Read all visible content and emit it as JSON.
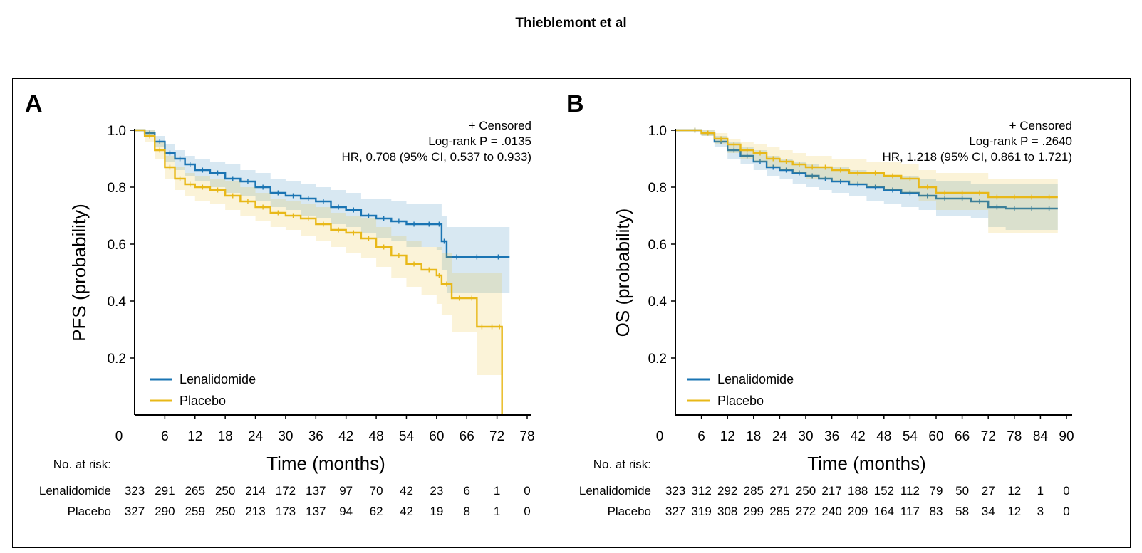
{
  "page_title": "Thieblemont et al",
  "chart_data": [
    {
      "type": "line",
      "panel": "A",
      "title": "",
      "ylabel": "PFS (probability)",
      "xlabel": "Time (months)",
      "xlim": [
        0,
        78
      ],
      "ylim": [
        0,
        1.0
      ],
      "x_ticks": [
        "0",
        "6",
        "12",
        "18",
        "24",
        "30",
        "36",
        "42",
        "48",
        "54",
        "60",
        "66",
        "72",
        "78"
      ],
      "y_ticks": [
        "1.0",
        "0.8",
        "0.6",
        "0.4",
        "0.2"
      ],
      "annotations": [
        "+ Censored",
        "Log-rank P = .0135",
        "HR, 0.708 (95% CI, 0.537 to 0.933)"
      ],
      "legend": [
        "Lenalidomide",
        "Placebo"
      ],
      "series": [
        {
          "name": "Lenalidomide",
          "color": "#1a74b3",
          "x": [
            0,
            2,
            4,
            6,
            8,
            10,
            12,
            15,
            18,
            21,
            24,
            27,
            30,
            33,
            36,
            39,
            42,
            45,
            48,
            51,
            54,
            57,
            60,
            61,
            62,
            66,
            70,
            74.5
          ],
          "y": [
            1.0,
            0.99,
            0.96,
            0.92,
            0.9,
            0.88,
            0.86,
            0.85,
            0.83,
            0.82,
            0.8,
            0.78,
            0.77,
            0.76,
            0.75,
            0.73,
            0.72,
            0.7,
            0.69,
            0.68,
            0.67,
            0.67,
            0.67,
            0.61,
            0.555,
            0.555,
            0.555,
            0.555
          ],
          "ci_lower": [
            1.0,
            0.98,
            0.94,
            0.89,
            0.86,
            0.84,
            0.82,
            0.8,
            0.78,
            0.77,
            0.75,
            0.73,
            0.72,
            0.7,
            0.69,
            0.67,
            0.66,
            0.64,
            0.62,
            0.61,
            0.59,
            0.59,
            0.58,
            0.51,
            0.43,
            0.43,
            0.43,
            0.43
          ],
          "ci_upper": [
            1.0,
            1.0,
            0.98,
            0.95,
            0.93,
            0.91,
            0.9,
            0.89,
            0.88,
            0.86,
            0.85,
            0.83,
            0.82,
            0.81,
            0.8,
            0.79,
            0.78,
            0.76,
            0.76,
            0.75,
            0.74,
            0.74,
            0.74,
            0.7,
            0.66,
            0.66,
            0.66,
            0.66
          ]
        },
        {
          "name": "Placebo",
          "color": "#e8b818",
          "x": [
            0,
            2,
            4,
            6,
            8,
            10,
            12,
            15,
            18,
            21,
            24,
            27,
            30,
            33,
            36,
            39,
            42,
            45,
            48,
            51,
            54,
            57,
            60,
            61,
            63,
            66,
            68,
            70,
            72,
            73
          ],
          "y": [
            1.0,
            0.98,
            0.93,
            0.87,
            0.83,
            0.81,
            0.8,
            0.79,
            0.77,
            0.75,
            0.73,
            0.71,
            0.7,
            0.69,
            0.67,
            0.65,
            0.64,
            0.62,
            0.59,
            0.56,
            0.53,
            0.51,
            0.49,
            0.46,
            0.41,
            0.41,
            0.31,
            0.31,
            0.31,
            0.0
          ],
          "ci_lower": [
            1.0,
            0.96,
            0.9,
            0.83,
            0.79,
            0.77,
            0.75,
            0.74,
            0.72,
            0.7,
            0.68,
            0.66,
            0.65,
            0.63,
            0.61,
            0.59,
            0.57,
            0.55,
            0.52,
            0.48,
            0.45,
            0.42,
            0.39,
            0.35,
            0.29,
            0.29,
            0.14,
            0.14,
            0.14,
            0.14
          ],
          "ci_upper": [
            1.0,
            1.0,
            0.96,
            0.91,
            0.87,
            0.85,
            0.84,
            0.83,
            0.82,
            0.8,
            0.78,
            0.76,
            0.75,
            0.74,
            0.73,
            0.71,
            0.7,
            0.69,
            0.66,
            0.63,
            0.61,
            0.59,
            0.59,
            0.57,
            0.5,
            0.5,
            0.5,
            0.5,
            0.5,
            0.5
          ]
        }
      ],
      "risk_table": {
        "title": "No. at risk:",
        "rows": [
          {
            "label": "Lenalidomide",
            "values": [
              "323",
              "291",
              "265",
              "250",
              "214",
              "172",
              "137",
              "97",
              "70",
              "42",
              "23",
              "6",
              "1",
              "0"
            ]
          },
          {
            "label": "Placebo",
            "values": [
              "327",
              "290",
              "259",
              "250",
              "213",
              "173",
              "137",
              "94",
              "62",
              "42",
              "19",
              "8",
              "1",
              "0"
            ]
          }
        ]
      }
    },
    {
      "type": "line",
      "panel": "B",
      "title": "",
      "ylabel": "OS (probability)",
      "xlabel": "Time (months)",
      "xlim": [
        0,
        90
      ],
      "ylim": [
        0,
        1.0
      ],
      "x_ticks": [
        "0",
        "6",
        "12",
        "18",
        "24",
        "30",
        "36",
        "42",
        "48",
        "54",
        "60",
        "66",
        "72",
        "78",
        "84",
        "90"
      ],
      "y_ticks": [
        "1.0",
        "0.8",
        "0.6",
        "0.4",
        "0.2"
      ],
      "annotations": [
        "+ Censored",
        "Log-rank P = .2640",
        "HR, 1.218 (95% CI, 0.861 to 1.721)"
      ],
      "legend": [
        "Lenalidomide",
        "Placebo"
      ],
      "series": [
        {
          "name": "Lenalidomide",
          "color": "#1a74b3",
          "x": [
            0,
            3,
            6,
            9,
            12,
            15,
            18,
            21,
            24,
            27,
            30,
            33,
            36,
            40,
            44,
            48,
            52,
            56,
            60,
            64,
            68,
            72,
            76,
            80,
            84,
            88
          ],
          "y": [
            1.0,
            1.0,
            0.99,
            0.96,
            0.93,
            0.91,
            0.89,
            0.87,
            0.86,
            0.85,
            0.84,
            0.83,
            0.82,
            0.81,
            0.8,
            0.79,
            0.78,
            0.77,
            0.76,
            0.76,
            0.75,
            0.73,
            0.725,
            0.725,
            0.725,
            0.725
          ],
          "ci_lower": [
            1.0,
            1.0,
            0.98,
            0.94,
            0.9,
            0.88,
            0.86,
            0.84,
            0.83,
            0.81,
            0.8,
            0.79,
            0.78,
            0.77,
            0.75,
            0.74,
            0.73,
            0.72,
            0.7,
            0.7,
            0.69,
            0.66,
            0.65,
            0.65,
            0.65,
            0.65
          ],
          "ci_upper": [
            1.0,
            1.0,
            1.0,
            0.98,
            0.96,
            0.94,
            0.93,
            0.91,
            0.9,
            0.89,
            0.88,
            0.87,
            0.87,
            0.86,
            0.85,
            0.84,
            0.84,
            0.83,
            0.82,
            0.82,
            0.81,
            0.81,
            0.81,
            0.81,
            0.81,
            0.81
          ]
        },
        {
          "name": "Placebo",
          "color": "#e8b818",
          "x": [
            0,
            3,
            6,
            9,
            12,
            15,
            18,
            21,
            24,
            27,
            30,
            33,
            36,
            40,
            44,
            48,
            52,
            56,
            60,
            64,
            68,
            72,
            76,
            80,
            84,
            88
          ],
          "y": [
            1.0,
            1.0,
            0.99,
            0.97,
            0.95,
            0.93,
            0.92,
            0.9,
            0.89,
            0.88,
            0.87,
            0.87,
            0.86,
            0.85,
            0.85,
            0.84,
            0.83,
            0.8,
            0.78,
            0.78,
            0.78,
            0.765,
            0.765,
            0.765,
            0.765,
            0.765
          ],
          "ci_lower": [
            1.0,
            1.0,
            0.98,
            0.95,
            0.92,
            0.9,
            0.89,
            0.87,
            0.86,
            0.85,
            0.83,
            0.83,
            0.82,
            0.81,
            0.8,
            0.79,
            0.78,
            0.75,
            0.72,
            0.72,
            0.72,
            0.64,
            0.64,
            0.64,
            0.64,
            0.64
          ],
          "ci_upper": [
            1.0,
            1.0,
            1.0,
            0.99,
            0.97,
            0.96,
            0.95,
            0.94,
            0.93,
            0.92,
            0.91,
            0.91,
            0.9,
            0.9,
            0.89,
            0.89,
            0.88,
            0.86,
            0.85,
            0.85,
            0.85,
            0.83,
            0.83,
            0.83,
            0.83,
            0.83
          ]
        }
      ],
      "risk_table": {
        "title": "No. at risk:",
        "rows": [
          {
            "label": "Lenalidomide",
            "values": [
              "323",
              "312",
              "292",
              "285",
              "271",
              "250",
              "217",
              "188",
              "152",
              "112",
              "79",
              "50",
              "27",
              "12",
              "1",
              "0"
            ]
          },
          {
            "label": "Placebo",
            "values": [
              "327",
              "319",
              "308",
              "299",
              "285",
              "272",
              "240",
              "209",
              "164",
              "117",
              "83",
              "58",
              "34",
              "12",
              "3",
              "0"
            ]
          }
        ]
      }
    }
  ]
}
